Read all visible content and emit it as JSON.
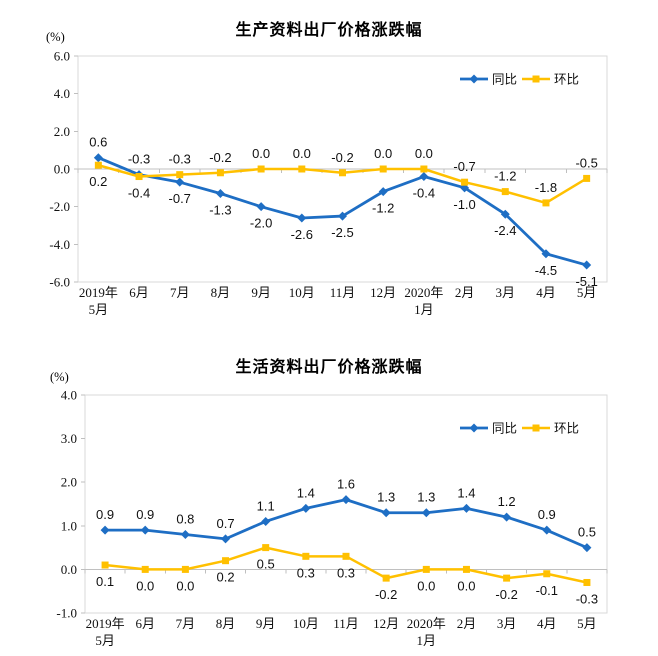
{
  "page": {
    "background": "#ffffff"
  },
  "chart_data": [
    {
      "type": "line",
      "title": "生产资料出厂价格涨跌幅",
      "unit_label": "(%)",
      "categories": [
        "2019年\n5月",
        "6月",
        "7月",
        "8月",
        "9月",
        "10月",
        "11月",
        "12月",
        "2020年\n1月",
        "2月",
        "3月",
        "4月",
        "5月"
      ],
      "series": [
        {
          "name": "同比",
          "color": "#1E6EC4",
          "marker": "diamond",
          "values": [
            0.6,
            -0.3,
            -0.7,
            -1.3,
            -2.0,
            -2.6,
            -2.5,
            -1.2,
            -0.4,
            -1.0,
            -2.4,
            -4.5,
            -5.1
          ]
        },
        {
          "name": "环比",
          "color": "#FFC000",
          "marker": "square",
          "values": [
            0.2,
            -0.4,
            -0.3,
            -0.2,
            0.0,
            0.0,
            -0.2,
            0.0,
            0.0,
            -0.7,
            -1.2,
            -1.8,
            -0.5
          ]
        }
      ],
      "ylim": [
        -6,
        6
      ],
      "ytick_step": 2,
      "ytick_labels": [
        "6.0",
        "4.0",
        "2.0",
        "0.0",
        "-2.0",
        "-4.0",
        "-6.0"
      ],
      "grid": false,
      "zero_line": true,
      "legend_position": "top-right",
      "axis_color": "#D9D9D9",
      "tick_color": "#BFBFBF",
      "zero_line_color": "#C0C0C0",
      "text_color": "#111111"
    },
    {
      "type": "line",
      "title": "生活资料出厂价格涨跌幅",
      "unit_label": "(%)",
      "categories": [
        "2019年\n5月",
        "6月",
        "7月",
        "8月",
        "9月",
        "10月",
        "11月",
        "12月",
        "2020年\n1月",
        "2月",
        "3月",
        "4月",
        "5月"
      ],
      "series": [
        {
          "name": "同比",
          "color": "#1E6EC4",
          "marker": "diamond",
          "values": [
            0.9,
            0.9,
            0.8,
            0.7,
            1.1,
            1.4,
            1.6,
            1.3,
            1.3,
            1.4,
            1.2,
            0.9,
            0.5
          ]
        },
        {
          "name": "环比",
          "color": "#FFC000",
          "marker": "square",
          "values": [
            0.1,
            0.0,
            0.0,
            0.2,
            0.5,
            0.3,
            0.3,
            -0.2,
            0.0,
            0.0,
            -0.2,
            -0.1,
            -0.3
          ]
        }
      ],
      "ylim": [
        -1,
        4
      ],
      "ytick_step": 1,
      "ytick_labels": [
        "4.0",
        "3.0",
        "2.0",
        "1.0",
        "0.0",
        "-1.0"
      ],
      "grid": false,
      "zero_line": true,
      "legend_position": "top-right",
      "axis_color": "#D9D9D9",
      "tick_color": "#BFBFBF",
      "zero_line_color": "#C0C0C0",
      "text_color": "#111111"
    }
  ]
}
